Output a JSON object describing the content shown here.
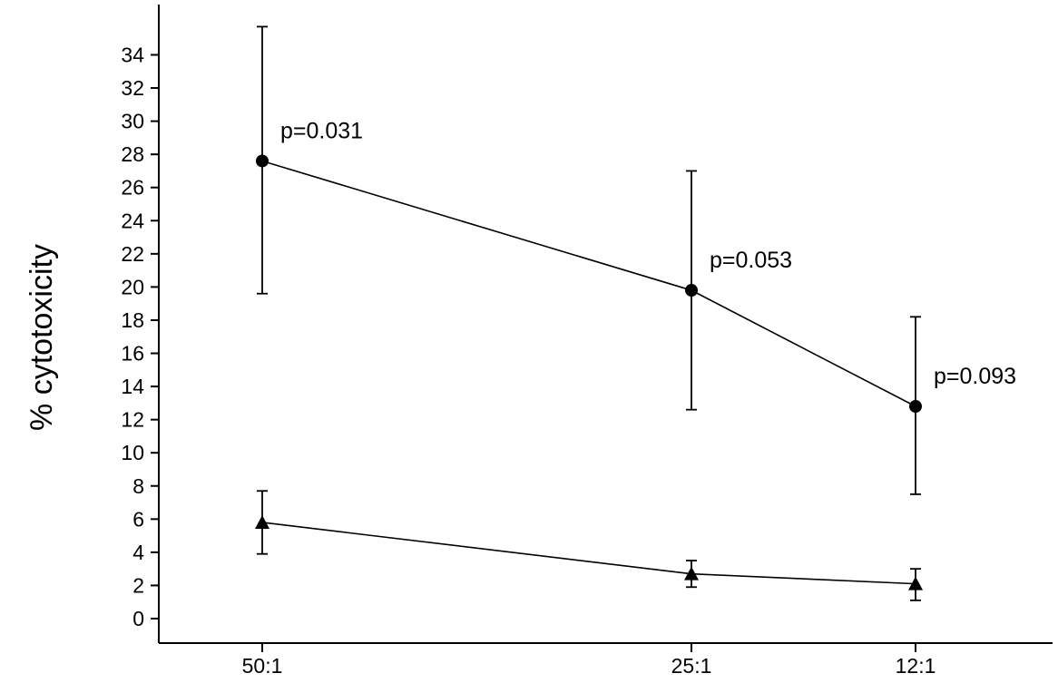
{
  "chart_data": {
    "type": "line",
    "title": "",
    "xlabel": "",
    "ylabel": "% cytotoxicity",
    "categories": [
      "50:1",
      "25:1",
      "12:1"
    ],
    "yticks": [
      "0",
      "2",
      "4",
      "6",
      "8",
      "10",
      "12",
      "14",
      "16",
      "18",
      "20",
      "22",
      "24",
      "26",
      "28",
      "30",
      "32",
      "34"
    ],
    "ylim": [
      -1,
      37
    ],
    "grid": false,
    "legend": "none",
    "series": [
      {
        "marker": "circle",
        "values": [
          27.6,
          19.8,
          12.8
        ],
        "err_low": [
          19.6,
          12.6,
          7.5
        ],
        "err_high": [
          35.7,
          27.0,
          18.2
        ]
      },
      {
        "marker": "triangle",
        "values": [
          5.8,
          2.7,
          2.1
        ],
        "err_low": [
          3.9,
          1.9,
          1.1
        ],
        "err_high": [
          7.7,
          3.5,
          3.0
        ]
      }
    ],
    "annotations": [
      "p=0.031",
      "p=0.053",
      "p=0.093"
    ],
    "colors": {
      "line": "#000000",
      "background": "#ffffff"
    }
  }
}
